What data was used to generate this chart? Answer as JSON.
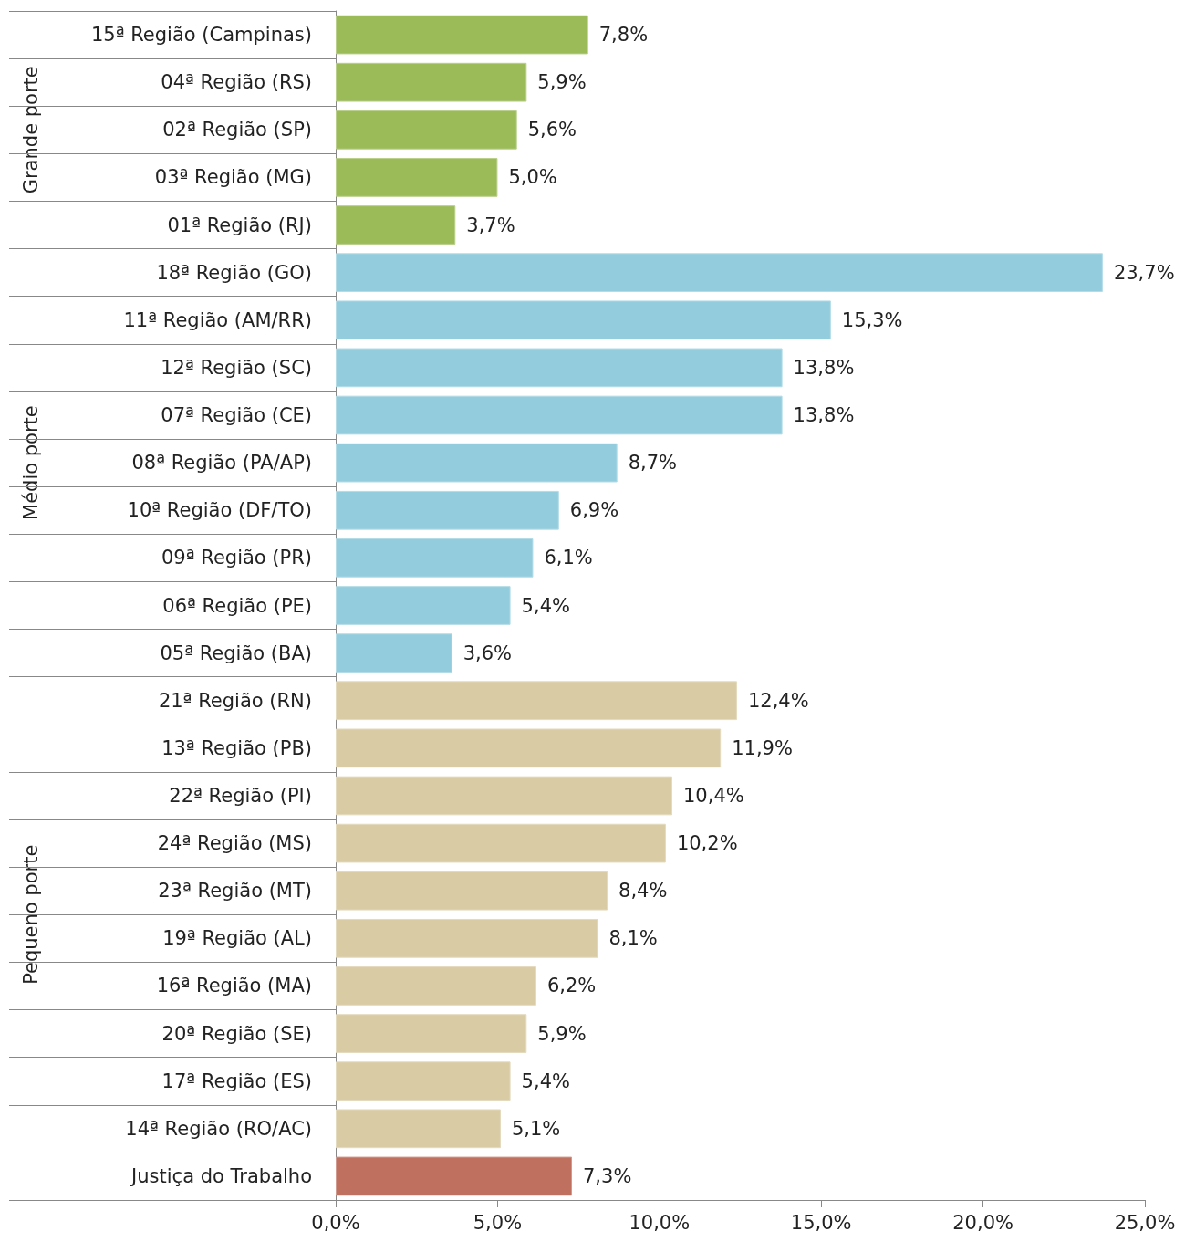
{
  "chart_data": {
    "type": "bar",
    "orientation": "horizontal",
    "categories": [
      "15ª Região (Campinas)",
      "04ª Região (RS)",
      "02ª Região (SP)",
      "03ª Região (MG)",
      "01ª Região (RJ)",
      "18ª Região (GO)",
      "11ª Região (AM/RR)",
      "12ª Região (SC)",
      "07ª Região (CE)",
      "08ª Região (PA/AP)",
      "10ª Região (DF/TO)",
      "09ª Região (PR)",
      "06ª Região (PE)",
      "05ª Região (BA)",
      "21ª Região (RN)",
      "13ª Região (PB)",
      "22ª Região (PI)",
      "24ª Região (MS)",
      "23ª Região (MT)",
      "19ª Região (AL)",
      "16ª Região (MA)",
      "20ª Região (SE)",
      "17ª Região (ES)",
      "14ª Região (RO/AC)",
      "Justiça do Trabalho"
    ],
    "series": [
      {
        "name": "Grande porte",
        "color": "#9bbb59",
        "values": [
          7.8,
          5.9,
          5.6,
          5.0,
          3.7,
          null,
          null,
          null,
          null,
          null,
          null,
          null,
          null,
          null,
          null,
          null,
          null,
          null,
          null,
          null,
          null,
          null,
          null,
          null,
          null
        ],
        "value_labels": [
          "7,8%",
          "5,9%",
          "5,6%",
          "5,0%",
          "3,7%",
          null,
          null,
          null,
          null,
          null,
          null,
          null,
          null,
          null,
          null,
          null,
          null,
          null,
          null,
          null,
          null,
          null,
          null,
          null,
          null
        ]
      },
      {
        "name": "Médio porte",
        "color": "#93cddd",
        "values": [
          null,
          null,
          null,
          null,
          null,
          23.7,
          15.3,
          13.8,
          13.8,
          8.7,
          6.9,
          6.1,
          5.4,
          3.6,
          null,
          null,
          null,
          null,
          null,
          null,
          null,
          null,
          null,
          null,
          null
        ],
        "value_labels": [
          null,
          null,
          null,
          null,
          null,
          "23,7%",
          "15,3%",
          "13,8%",
          "13,8%",
          "8,7%",
          "6,9%",
          "6,1%",
          "5,4%",
          "3,6%",
          null,
          null,
          null,
          null,
          null,
          null,
          null,
          null,
          null,
          null,
          null
        ]
      },
      {
        "name": "Pequeno porte",
        "color": "#d9cba3",
        "values": [
          null,
          null,
          null,
          null,
          null,
          null,
          null,
          null,
          null,
          null,
          null,
          null,
          null,
          null,
          12.4,
          11.9,
          10.4,
          10.2,
          8.4,
          8.1,
          6.2,
          5.9,
          5.4,
          5.1,
          null
        ],
        "value_labels": [
          null,
          null,
          null,
          null,
          null,
          null,
          null,
          null,
          null,
          null,
          null,
          null,
          null,
          null,
          "12,4%",
          "11,9%",
          "10,4%",
          "10,2%",
          "8,4%",
          "8,1%",
          "6,2%",
          "5,9%",
          "5,4%",
          "5,1%",
          null
        ]
      },
      {
        "color": "#c0705e",
        "values": [
          null,
          null,
          null,
          null,
          null,
          null,
          null,
          null,
          null,
          null,
          null,
          null,
          null,
          null,
          null,
          null,
          null,
          null,
          null,
          null,
          null,
          null,
          null,
          null,
          7.3
        ],
        "value_labels": [
          null,
          null,
          null,
          null,
          null,
          null,
          null,
          null,
          null,
          null,
          null,
          null,
          null,
          null,
          null,
          null,
          null,
          null,
          null,
          null,
          null,
          null,
          null,
          null,
          "7,3%"
        ]
      }
    ],
    "xlim": [
      0,
      25
    ],
    "xticks": [
      {
        "value": 0,
        "label": "0,0%"
      },
      {
        "value": 5,
        "label": "5,0%"
      },
      {
        "value": 10,
        "label": "10,0%"
      },
      {
        "value": 15,
        "label": "15,0%"
      },
      {
        "value": 20,
        "label": "20,0%"
      },
      {
        "value": 25,
        "label": "25,0%"
      }
    ],
    "grid": false,
    "legend": false
  }
}
